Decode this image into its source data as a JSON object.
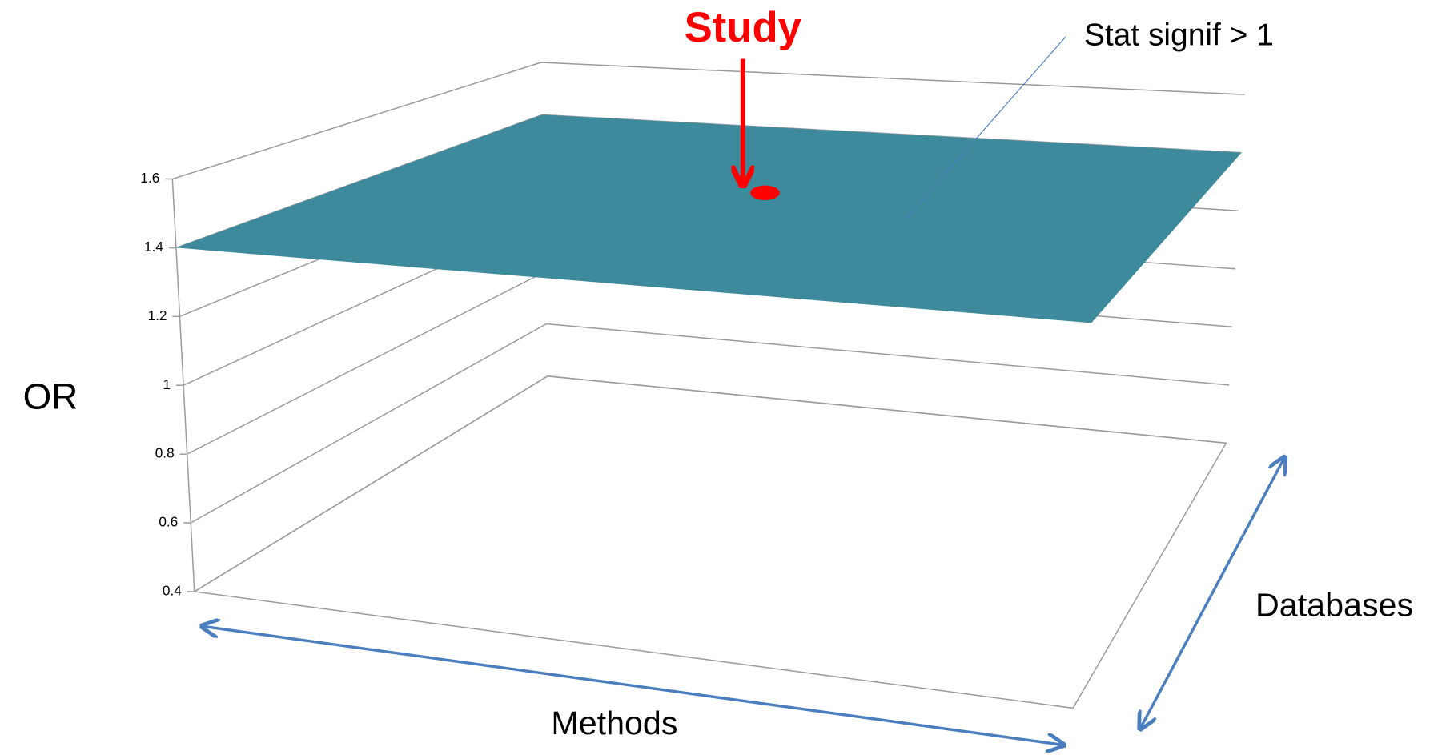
{
  "chart_data": {
    "type": "surface",
    "y_label": "OR",
    "x_label": "Methods",
    "z_label": "Databases",
    "ylim": [
      0.4,
      1.6
    ],
    "yticks": [
      0.4,
      0.6,
      0.8,
      1,
      1.2,
      1.4,
      1.6
    ],
    "grid": true,
    "surface": {
      "name": "Stat signif > 1",
      "value": 1.4,
      "color": "#3e8a9d"
    },
    "point": {
      "name": "Study",
      "value": 1.4,
      "color": "#ff0000"
    }
  }
}
